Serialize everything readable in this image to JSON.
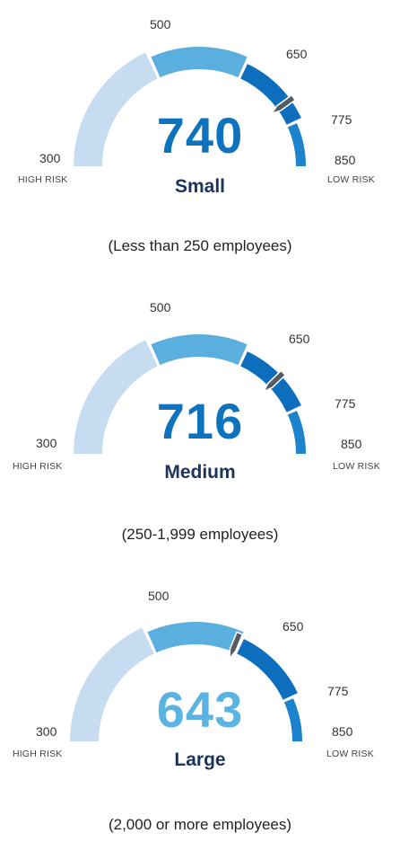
{
  "chart_data": [
    {
      "type": "gauge",
      "scale": {
        "min": 300,
        "max": 850,
        "boundaries": [
          300,
          500,
          650,
          775,
          850
        ],
        "segment_colors": [
          "#c6dcf1",
          "#5aafdf",
          "#0d6ebe",
          "#1c83cc",
          "#1b2d5d"
        ],
        "low_label": "HIGH RISK",
        "high_label": "LOW RISK"
      },
      "score": 740,
      "score_color": "#0e72bd",
      "size": "Small",
      "caption": "(Less than 250 employees)"
    },
    {
      "type": "gauge",
      "scale": {
        "min": 300,
        "max": 850,
        "boundaries": [
          300,
          500,
          650,
          775,
          850
        ],
        "segment_colors": [
          "#c6dcf1",
          "#5aafdf",
          "#0d6ebe",
          "#1c83cc",
          "#1b2d5d"
        ],
        "low_label": "HIGH RISK",
        "high_label": "LOW RISK"
      },
      "score": 716,
      "score_color": "#0e72bd",
      "size": "Medium",
      "caption": "(250-1,999 employees)"
    },
    {
      "type": "gauge",
      "scale": {
        "min": 300,
        "max": 850,
        "boundaries": [
          300,
          500,
          650,
          775,
          850
        ],
        "segment_colors": [
          "#c6dcf1",
          "#5aafdf",
          "#0d6ebe",
          "#1c83cc",
          "#1b2d5d"
        ],
        "low_label": "HIGH RISK",
        "high_label": "LOW RISK"
      },
      "score": 643,
      "score_color": "#5ab3e1",
      "size": "Large",
      "caption": "(2,000 or more employees)"
    }
  ]
}
